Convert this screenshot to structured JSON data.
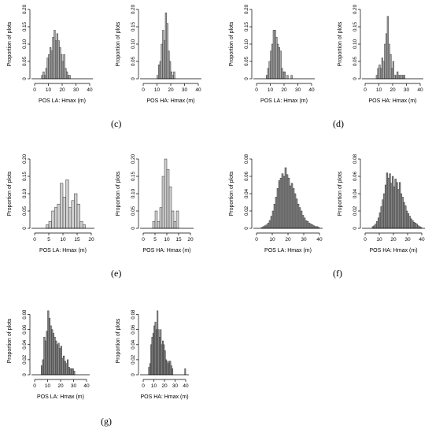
{
  "panel_labels": [
    "(c)",
    "(d)",
    "(e)",
    "(f)",
    "(g)"
  ],
  "chart_data": [
    {
      "type": "bar",
      "panel": "(c)",
      "xlabel": "POS LA: Hmax (m)",
      "ylabel": "Proportion of plots",
      "xlim": [
        0,
        40
      ],
      "ylim": [
        0,
        0.2
      ],
      "xticks": [
        0,
        10,
        20,
        30,
        40
      ],
      "yticks": [
        0.0,
        0.05,
        0.1,
        0.15,
        0.2
      ],
      "bin_width": 1,
      "bar_color": "#a9a9a9",
      "bins": [
        5,
        6,
        7,
        8,
        9,
        10,
        11,
        12,
        13,
        14,
        15,
        16,
        17,
        18,
        19,
        20,
        21,
        22,
        23,
        24,
        25
      ],
      "values": [
        0.01,
        0.02,
        0.01,
        0.03,
        0.06,
        0.07,
        0.09,
        0.08,
        0.12,
        0.14,
        0.11,
        0.13,
        0.11,
        0.09,
        0.07,
        0.05,
        0.07,
        0.03,
        0.02,
        0.01,
        0.01
      ]
    },
    {
      "type": "bar",
      "panel": "(c)",
      "xlabel": "POS HA: Hmax (m)",
      "ylabel": "Proportion of plots",
      "xlim": [
        0,
        40
      ],
      "ylim": [
        0,
        0.2
      ],
      "xticks": [
        0,
        10,
        20,
        30,
        40
      ],
      "yticks": [
        0.0,
        0.05,
        0.1,
        0.15,
        0.2
      ],
      "bin_width": 1,
      "bar_color": "#a9a9a9",
      "bins": [
        10,
        11,
        12,
        13,
        14,
        15,
        16,
        17,
        18,
        19,
        20,
        21,
        22
      ],
      "values": [
        0.01,
        0.04,
        0.05,
        0.1,
        0.14,
        0.11,
        0.19,
        0.16,
        0.08,
        0.05,
        0.02,
        0.01,
        0.02
      ]
    },
    {
      "type": "bar",
      "panel": "(d)",
      "xlabel": "POS LA: Hmax (m)",
      "ylabel": "Proportion of plots",
      "xlim": [
        0,
        40
      ],
      "ylim": [
        0,
        0.2
      ],
      "xticks": [
        0,
        10,
        20,
        30,
        40
      ],
      "yticks": [
        0.0,
        0.05,
        0.1,
        0.15,
        0.2
      ],
      "bin_width": 1,
      "bar_color": "#a9a9a9",
      "bins": [
        7,
        8,
        9,
        10,
        11,
        12,
        13,
        14,
        15,
        16,
        17,
        18,
        19,
        20,
        22,
        25
      ],
      "values": [
        0.01,
        0.03,
        0.05,
        0.08,
        0.1,
        0.14,
        0.14,
        0.12,
        0.1,
        0.09,
        0.08,
        0.03,
        0.02,
        0.02,
        0.01,
        0.01
      ]
    },
    {
      "type": "bar",
      "panel": "(d)",
      "xlabel": "POS HA: Hmax (m)",
      "ylabel": "Proportion of plots",
      "xlim": [
        0,
        40
      ],
      "ylim": [
        0,
        0.2
      ],
      "xticks": [
        0,
        10,
        20,
        30,
        40
      ],
      "yticks": [
        0.0,
        0.05,
        0.1,
        0.15,
        0.2
      ],
      "bin_width": 1,
      "bar_color": "#a9a9a9",
      "bins": [
        8,
        9,
        10,
        11,
        12,
        13,
        14,
        15,
        16,
        17,
        18,
        19,
        20,
        21,
        22,
        23,
        24,
        25,
        26,
        27,
        28
      ],
      "values": [
        0.01,
        0.03,
        0.04,
        0.03,
        0.06,
        0.05,
        0.1,
        0.13,
        0.18,
        0.1,
        0.07,
        0.03,
        0.05,
        0.01,
        0.01,
        0.02,
        0.01,
        0.01,
        0.01,
        0.01,
        0.01
      ]
    },
    {
      "type": "bar",
      "panel": "(e)",
      "xlabel": "POS LA: Hmax (m)",
      "ylabel": "Proportion of plots",
      "xlim": [
        0,
        20
      ],
      "ylim": [
        0,
        0.2
      ],
      "xticks": [
        0,
        5,
        10,
        15,
        20
      ],
      "yticks": [
        0.0,
        0.05,
        0.1,
        0.15,
        0.2
      ],
      "bin_width": 1,
      "bar_color": "#cfcfcf",
      "bins": [
        4,
        5,
        6,
        7,
        8,
        9,
        10,
        11,
        12,
        13,
        14,
        15,
        16,
        17
      ],
      "values": [
        0.01,
        0.02,
        0.05,
        0.06,
        0.07,
        0.13,
        0.09,
        0.14,
        0.06,
        0.08,
        0.1,
        0.07,
        0.02,
        0.01
      ]
    },
    {
      "type": "bar",
      "panel": "(e)",
      "xlabel": "POS HA: Hmax (m)",
      "ylabel": "Proportion of plots",
      "xlim": [
        0,
        20
      ],
      "ylim": [
        0,
        0.2
      ],
      "xticks": [
        0,
        5,
        10,
        15,
        20
      ],
      "yticks": [
        0.0,
        0.05,
        0.1,
        0.15,
        0.2
      ],
      "bin_width": 1,
      "bar_color": "#cfcfcf",
      "bins": [
        4,
        5,
        6,
        7,
        8,
        9,
        10,
        11,
        12,
        13,
        14
      ],
      "values": [
        0.02,
        0.05,
        0.02,
        0.06,
        0.15,
        0.2,
        0.17,
        0.12,
        0.05,
        0.02,
        0.05
      ]
    },
    {
      "type": "bar",
      "panel": "(f)",
      "xlabel": "POS LA: Hmax (m)",
      "ylabel": "Proportion of plots",
      "xlim": [
        0,
        40
      ],
      "ylim": [
        0,
        0.08
      ],
      "xticks": [
        0,
        10,
        20,
        30,
        40
      ],
      "yticks": [
        0.0,
        0.02,
        0.04,
        0.06,
        0.08
      ],
      "bin_width": 1,
      "bar_color": "#8a8a8a",
      "bins": [
        3,
        4,
        5,
        6,
        7,
        8,
        9,
        10,
        11,
        12,
        13,
        14,
        15,
        16,
        17,
        18,
        19,
        20,
        21,
        22,
        23,
        24,
        25,
        26,
        27,
        28,
        29,
        30,
        31,
        32,
        33,
        34,
        35,
        36,
        37,
        38,
        39
      ],
      "values": [
        0.001,
        0.002,
        0.003,
        0.004,
        0.006,
        0.009,
        0.014,
        0.02,
        0.028,
        0.036,
        0.046,
        0.055,
        0.058,
        0.063,
        0.06,
        0.07,
        0.062,
        0.058,
        0.049,
        0.052,
        0.046,
        0.04,
        0.034,
        0.028,
        0.024,
        0.02,
        0.015,
        0.012,
        0.009,
        0.008,
        0.006,
        0.005,
        0.004,
        0.003,
        0.002,
        0.002,
        0.001
      ]
    },
    {
      "type": "bar",
      "panel": "(f)",
      "xlabel": "POS HA: Hmax (m)",
      "ylabel": "Proportion of plots",
      "xlim": [
        0,
        40
      ],
      "ylim": [
        0,
        0.08
      ],
      "xticks": [
        0,
        10,
        20,
        30,
        40
      ],
      "yticks": [
        0.0,
        0.02,
        0.04,
        0.06,
        0.08
      ],
      "bin_width": 1,
      "bar_color": "#8a8a8a",
      "bins": [
        5,
        6,
        7,
        8,
        9,
        10,
        11,
        12,
        13,
        14,
        15,
        16,
        17,
        18,
        19,
        20,
        21,
        22,
        23,
        24,
        25,
        26,
        27,
        28,
        29,
        30,
        31,
        32,
        33,
        34,
        35,
        36,
        37,
        38,
        39
      ],
      "values": [
        0.002,
        0.003,
        0.005,
        0.008,
        0.012,
        0.018,
        0.025,
        0.033,
        0.04,
        0.05,
        0.064,
        0.058,
        0.063,
        0.052,
        0.06,
        0.048,
        0.057,
        0.053,
        0.045,
        0.053,
        0.04,
        0.036,
        0.03,
        0.026,
        0.02,
        0.017,
        0.014,
        0.011,
        0.009,
        0.007,
        0.006,
        0.005,
        0.003,
        0.002,
        0.001
      ]
    },
    {
      "type": "bar",
      "panel": "(g)",
      "xlabel": "POS LA: Hmax (m)",
      "ylabel": "Proportion of plots",
      "xlim": [
        0,
        40
      ],
      "ylim": [
        0,
        0.09
      ],
      "xticks": [
        0,
        10,
        20,
        30,
        40
      ],
      "yticks": [
        0.0,
        0.02,
        0.04,
        0.06,
        0.08
      ],
      "bin_width": 1,
      "bar_color": "#8a8a8a",
      "bins": [
        5,
        6,
        7,
        8,
        9,
        10,
        11,
        12,
        13,
        14,
        15,
        16,
        17,
        18,
        19,
        20,
        21,
        22,
        23,
        24,
        25,
        26,
        27,
        28,
        29,
        30
      ],
      "values": [
        0.012,
        0.02,
        0.05,
        0.045,
        0.058,
        0.085,
        0.075,
        0.065,
        0.06,
        0.055,
        0.05,
        0.045,
        0.04,
        0.042,
        0.035,
        0.038,
        0.022,
        0.025,
        0.018,
        0.015,
        0.02,
        0.01,
        0.008,
        0.008,
        0.008,
        0.005
      ]
    },
    {
      "type": "bar",
      "panel": "(g)",
      "xlabel": "POS HA: Hmax (m)",
      "ylabel": "Proportion of plots",
      "xlim": [
        0,
        40
      ],
      "ylim": [
        0,
        0.09
      ],
      "xticks": [
        0,
        10,
        20,
        30,
        40
      ],
      "yticks": [
        0.0,
        0.02,
        0.04,
        0.06,
        0.08
      ],
      "bin_width": 1,
      "bar_color": "#8a8a8a",
      "bins": [
        5,
        6,
        7,
        8,
        9,
        10,
        11,
        12,
        13,
        14,
        15,
        16,
        17,
        18,
        19,
        20,
        21,
        22,
        23,
        24,
        25,
        26,
        27,
        39
      ],
      "values": [
        0.01,
        0.015,
        0.04,
        0.05,
        0.055,
        0.065,
        0.07,
        0.06,
        0.085,
        0.06,
        0.05,
        0.06,
        0.04,
        0.045,
        0.04,
        0.032,
        0.02,
        0.018,
        0.015,
        0.018,
        0.018,
        0.012,
        0.008,
        0.008
      ]
    }
  ]
}
